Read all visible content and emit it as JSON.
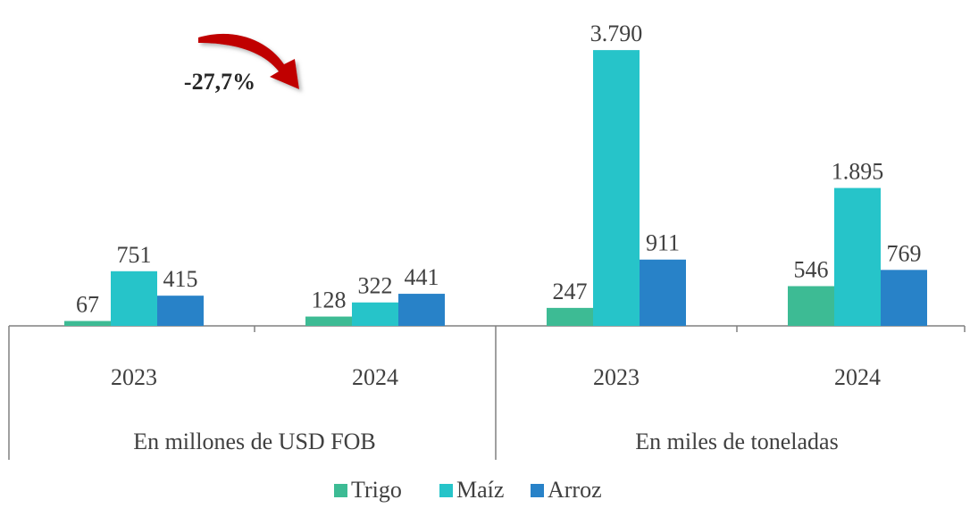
{
  "chart_data": {
    "type": "bar",
    "categories": [
      "2023",
      "2024",
      "2023",
      "2024"
    ],
    "category_groups": [
      "En millones de USD FOB",
      "En miles de toneladas"
    ],
    "series": [
      {
        "name": "Trigo",
        "color": "#3dbb94",
        "values": [
          67,
          128,
          247,
          546
        ]
      },
      {
        "name": "Maíz",
        "color": "#26c4c9",
        "values": [
          751,
          322,
          3790,
          1895
        ],
        "value_labels": [
          "751",
          "322",
          "3.790",
          "1.895"
        ]
      },
      {
        "name": "Arroz",
        "color": "#2882c8",
        "values": [
          415,
          441,
          911,
          769
        ]
      }
    ],
    "ylim": [
      0,
      4000
    ],
    "annotation": "-27,7%",
    "legend": "bottom"
  }
}
